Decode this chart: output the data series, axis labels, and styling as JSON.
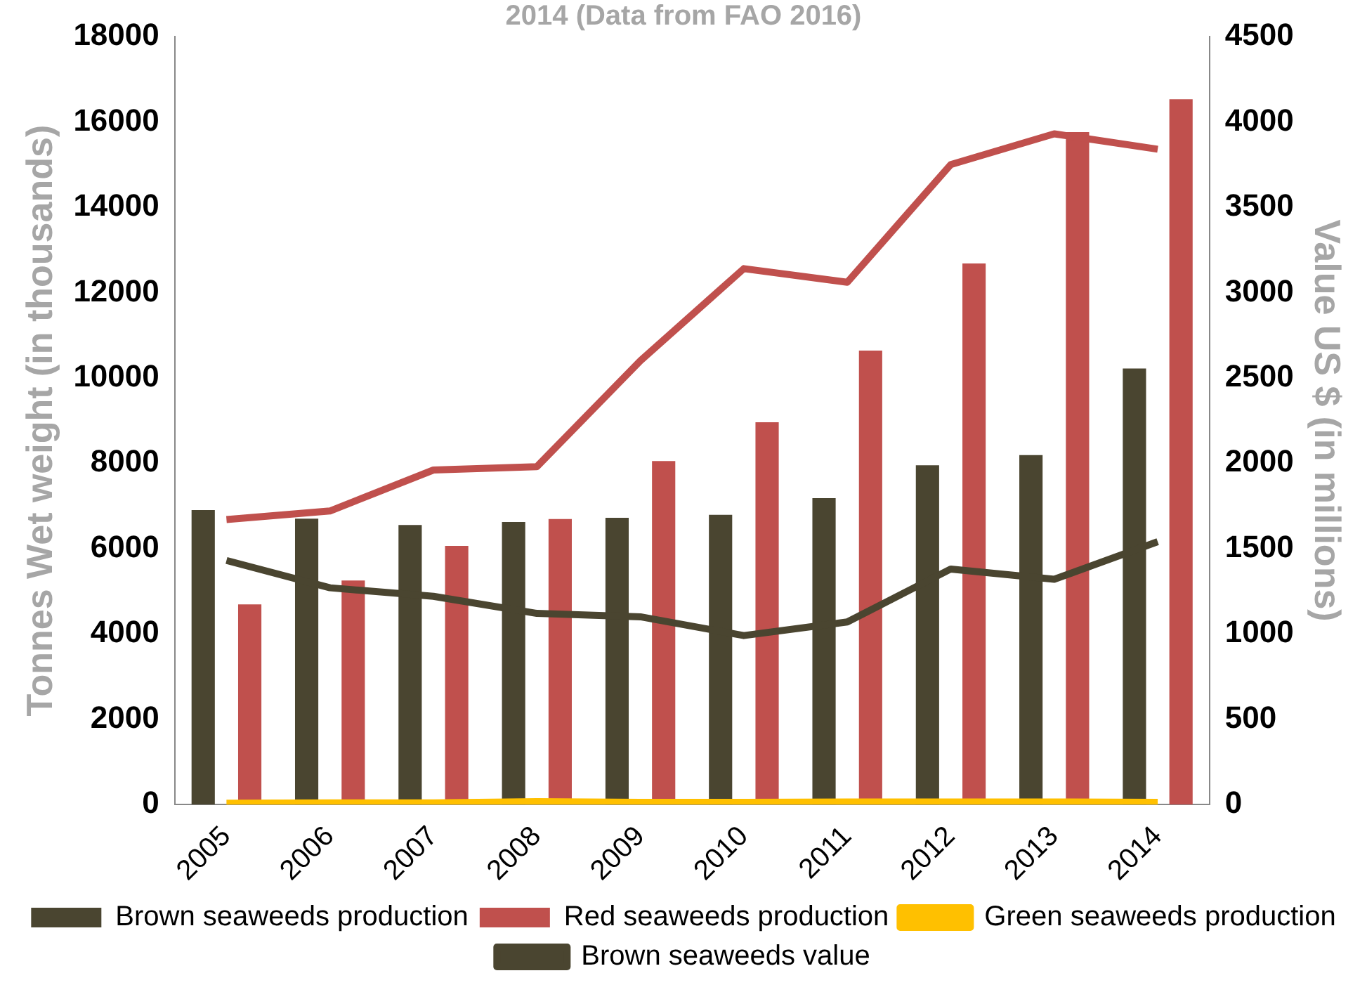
{
  "chart_data": {
    "type": "bar",
    "title": "2014 (Data from FAO 2016)",
    "ylabel": "Tonnes Wet weight (in thousands)",
    "y2label": "Value US $ (in millions)",
    "categories": [
      "2005",
      "2006",
      "2007",
      "2008",
      "2009",
      "2010",
      "2011",
      "2012",
      "2013",
      "2014"
    ],
    "series": [
      {
        "name": "Brown seaweeds production",
        "color": "#4a4530",
        "values": [
          6900,
          6700,
          6550,
          6620,
          6720,
          6790,
          7180,
          7950,
          8190,
          10220
        ]
      },
      {
        "name": "Red seaweeds production",
        "color": "#c0504d",
        "values": [
          4690,
          5250,
          6060,
          6690,
          8050,
          8960,
          10640,
          12680,
          15760,
          16530
        ]
      },
      {
        "name": "Green seaweeds production",
        "type": "line",
        "color": "#ffc000",
        "values": [
          30,
          40,
          40,
          70,
          50,
          50,
          60,
          60,
          60,
          50
        ]
      },
      {
        "name": "Brown seaweeds value",
        "type": "line",
        "axis": "y2",
        "color": "#4a4530",
        "values": [
          1430,
          1270,
          1220,
          1120,
          1100,
          990,
          1070,
          1380,
          1320,
          1540
        ]
      },
      {
        "type": "line",
        "axis": "y2",
        "color": "#c0504d",
        "values": [
          1670,
          1720,
          1960,
          1980,
          2600,
          3140,
          3060,
          3750,
          3930,
          3840
        ]
      }
    ],
    "ylim": [
      0,
      18000
    ],
    "yticks": [
      0,
      2000,
      4000,
      6000,
      8000,
      10000,
      12000,
      14000,
      16000,
      18000
    ],
    "y2lim": [
      0,
      4500
    ],
    "y2ticks": [
      0,
      500,
      1000,
      1500,
      2000,
      2500,
      3000,
      3500,
      4000,
      4500
    ],
    "grid": false,
    "legend": "bottom"
  }
}
